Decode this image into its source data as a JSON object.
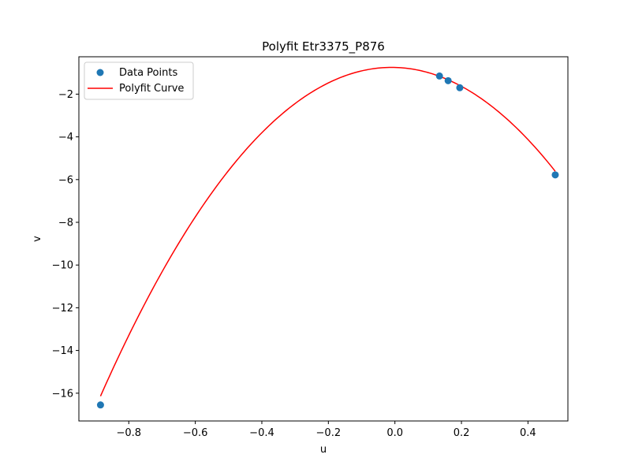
{
  "chart_data": {
    "type": "scatter",
    "title": "Polyfit Etr3375_P876",
    "xlabel": "u",
    "ylabel": "v",
    "xlim": [
      -0.95,
      0.52
    ],
    "ylim": [
      -17.3,
      -0.25
    ],
    "xticks": [
      -0.8,
      -0.6,
      -0.4,
      -0.2,
      0.0,
      0.2,
      0.4
    ],
    "xtick_labels": [
      "−0.8",
      "−0.6",
      "−0.4",
      "−0.2",
      "0.0",
      "0.2",
      "0.4"
    ],
    "yticks": [
      -16,
      -14,
      -12,
      -10,
      -8,
      -6,
      -4,
      -2
    ],
    "ytick_labels": [
      "−16",
      "−14",
      "−12",
      "−10",
      "−8",
      "−6",
      "−4",
      "−2"
    ],
    "legend_position": "top-left",
    "colors": {
      "points": "#1f77b4",
      "curve": "#ff0000"
    },
    "series": [
      {
        "name": "Data Points",
        "kind": "scatter",
        "x": [
          -0.885,
          0.134,
          0.16,
          0.195,
          0.482
        ],
        "y": [
          -16.55,
          -1.15,
          -1.37,
          -1.7,
          -5.78
        ]
      },
      {
        "name": "Polyfit Curve",
        "kind": "line",
        "x_range": [
          -0.885,
          0.482
        ],
        "poly_coeffs_highest_first": [
          -20.1,
          -0.4,
          -0.75
        ]
      }
    ]
  }
}
